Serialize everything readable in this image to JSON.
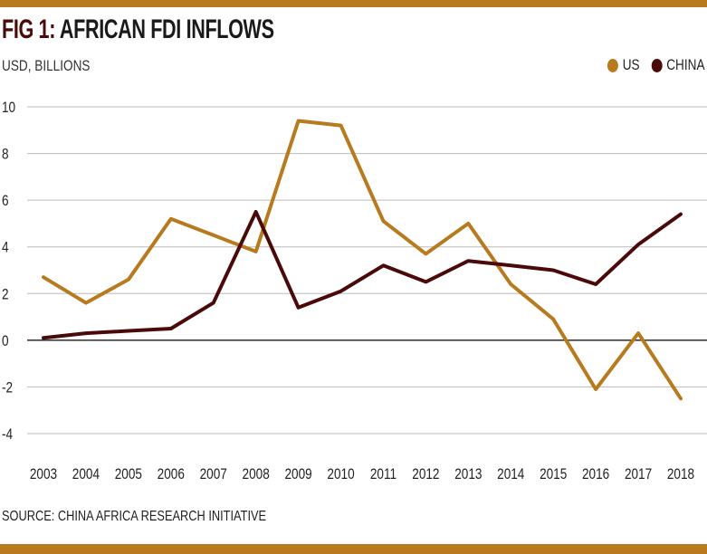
{
  "header": {
    "title_fig": "FIG 1:",
    "title_main": "AFRICAN FDI INFLOWS",
    "subtitle": "USD, BILLIONS"
  },
  "footer": {
    "source": "SOURCE: CHINA AFRICA RESEARCH INITIATIVE"
  },
  "colors": {
    "accent": "#b87a1e",
    "us": "#b87a1e",
    "china": "#4b0a0a",
    "grid": "#bbbbbb",
    "zero_line": "#000000"
  },
  "chart_data": {
    "type": "line",
    "title": "AFRICAN FDI INFLOWS",
    "ylabel": "USD, BILLIONS",
    "xlabel": "",
    "categories": [
      "2003",
      "2004",
      "2005",
      "2006",
      "2007",
      "2008",
      "2009",
      "2010",
      "2011",
      "2012",
      "2013",
      "2014",
      "2015",
      "2016",
      "2017",
      "2018"
    ],
    "yticks": [
      10,
      8,
      6,
      4,
      2,
      0,
      -2,
      -4
    ],
    "ylim": [
      -4,
      10
    ],
    "grid": true,
    "legend_position": "top-right",
    "series": [
      {
        "name": "US",
        "color": "#b87a1e",
        "values": [
          2.7,
          1.6,
          2.6,
          5.2,
          4.5,
          3.8,
          9.4,
          9.2,
          5.1,
          3.7,
          5.0,
          2.4,
          0.9,
          -2.1,
          0.3,
          -2.5
        ]
      },
      {
        "name": "CHINA",
        "color": "#4b0a0a",
        "values": [
          0.1,
          0.3,
          0.4,
          0.5,
          1.6,
          5.5,
          1.4,
          2.1,
          3.2,
          2.5,
          3.4,
          3.2,
          3.0,
          2.4,
          4.1,
          5.4
        ]
      }
    ]
  }
}
